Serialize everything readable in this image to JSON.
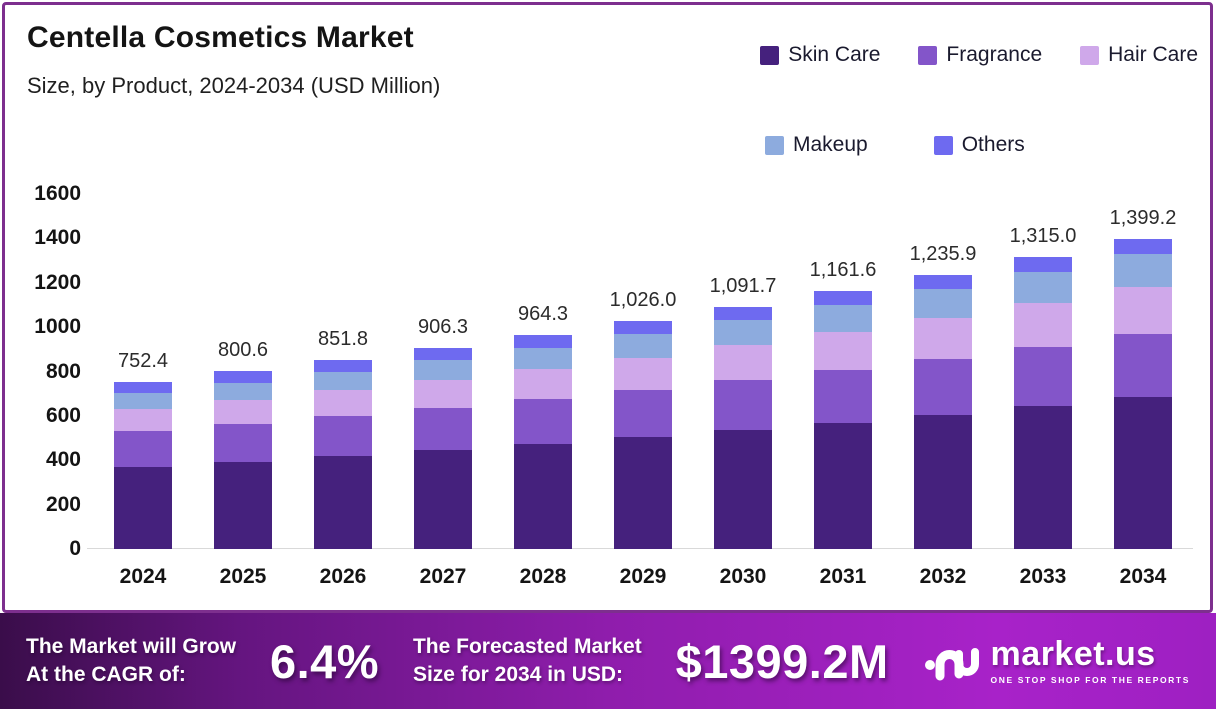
{
  "title": "Centella Cosmetics Market",
  "subtitle": "Size, by Product, 2024-2034 (USD Million)",
  "colors": {
    "skin_care": "#45217d",
    "fragrance": "#8355c9",
    "hair_care": "#cfa8ea",
    "makeup": "#8dabde",
    "others": "#6e6af0",
    "card_border": "#7d2f8e",
    "banner_gradient_start": "#3a0d4a",
    "banner_gradient_end": "#a822c9"
  },
  "chart_data": {
    "type": "bar",
    "subtype": "stacked",
    "title": "Centella Cosmetics Market",
    "subtitle": "Size, by Product, 2024-2034 (USD Million)",
    "unit": "USD Million",
    "categories": [
      "2024",
      "2025",
      "2026",
      "2027",
      "2028",
      "2029",
      "2030",
      "2031",
      "2032",
      "2033",
      "2034"
    ],
    "series": [
      {
        "name": "Skin Care",
        "color": "#45217d",
        "values": [
          370.2,
          393.7,
          418.8,
          445.4,
          473.7,
          503.7,
          535.8,
          570.0,
          606.1,
          644.7,
          685.6
        ]
      },
      {
        "name": "Fragrance",
        "color": "#8355c9",
        "values": [
          160.3,
          169.6,
          179.6,
          190.0,
          201.2,
          212.9,
          225.3,
          238.5,
          252.4,
          267.1,
          282.6
        ]
      },
      {
        "name": "Hair Care",
        "color": "#cfa8ea",
        "values": [
          100.1,
          108.0,
          116.5,
          125.7,
          135.6,
          146.2,
          157.6,
          169.9,
          183.2,
          197.4,
          212.7
        ]
      },
      {
        "name": "Makeup",
        "color": "#8dabde",
        "values": [
          73.0,
          78.5,
          84.3,
          90.6,
          97.4,
          104.7,
          112.4,
          120.8,
          129.8,
          139.4,
          149.7
        ]
      },
      {
        "name": "Others",
        "color": "#6e6af0",
        "values": [
          48.8,
          50.8,
          52.6,
          54.6,
          56.4,
          58.5,
          60.6,
          62.4,
          64.4,
          66.4,
          68.6
        ]
      }
    ],
    "totals": [
      752.4,
      800.6,
      851.8,
      906.3,
      964.3,
      1026.0,
      1091.7,
      1161.6,
      1235.9,
      1315.0,
      1399.2
    ],
    "totals_display": [
      "752.4",
      "800.6",
      "851.8",
      "906.3",
      "964.3",
      "1,026.0",
      "1,091.7",
      "1,161.6",
      "1,235.9",
      "1,315.0",
      "1,399.2"
    ],
    "ylim": [
      0,
      1600
    ],
    "yticks": [
      "1600",
      "1400",
      "1200",
      "1000",
      "800",
      "600",
      "400",
      "200",
      "0"
    ],
    "grid": false,
    "legend_position": "top-right",
    "legend": [
      "Skin Care",
      "Fragrance",
      "Hair Care",
      "Makeup",
      "Others"
    ]
  },
  "banner": {
    "cagr_label_line1": "The Market will Grow",
    "cagr_label_line2": "At the CAGR of:",
    "cagr_value": "6.4%",
    "forecast_label_line1": "The Forecasted Market",
    "forecast_label_line2": "Size for 2034 in USD:",
    "forecast_value": "$1399.2M",
    "logo_name": "market.us",
    "logo_tagline": "ONE STOP SHOP FOR THE REPORTS"
  }
}
